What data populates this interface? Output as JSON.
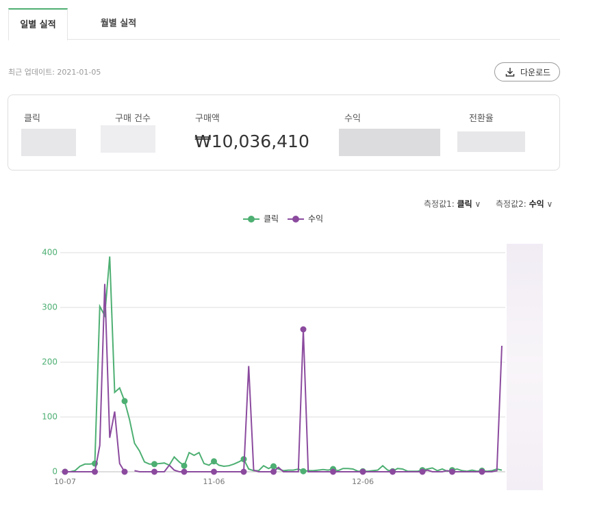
{
  "tabs": [
    "일별 실적",
    "월별 실적"
  ],
  "last_update": "최근 업데이트: 2021-01-05",
  "download_button": "다운로드",
  "summary": {
    "labels": [
      "클릭",
      "구매 건수",
      "구매액",
      "수익",
      "전환율"
    ],
    "purchase_amount": "₩10,036,410"
  },
  "measures": [
    {
      "label": "측정값1:",
      "value": "클릭"
    },
    {
      "label": "측정값2:",
      "value": "수익"
    }
  ],
  "chart_data": {
    "type": "line",
    "categories": [
      "10-07",
      null,
      null,
      null,
      null,
      null,
      null,
      null,
      null,
      null,
      null,
      null,
      null,
      null,
      null,
      null,
      null,
      null,
      null,
      null,
      null,
      null,
      null,
      null,
      null,
      null,
      null,
      null,
      null,
      null,
      "11-06",
      null,
      null,
      null,
      null,
      null,
      null,
      null,
      null,
      null,
      null,
      null,
      null,
      null,
      null,
      null,
      null,
      null,
      null,
      null,
      null,
      null,
      null,
      null,
      null,
      null,
      null,
      null,
      null,
      null,
      "12-06",
      null,
      null,
      null,
      null,
      null,
      null,
      null,
      null,
      null,
      null,
      null,
      null,
      null,
      null,
      null,
      null,
      null,
      null,
      null,
      null,
      null,
      null,
      null,
      null,
      null,
      null,
      null,
      null
    ],
    "series": [
      {
        "name": "클릭",
        "color": "#4daf72",
        "values": [
          0,
          0,
          2,
          10,
          14,
          14,
          15,
          302,
          285,
          393,
          145,
          153,
          129,
          95,
          52,
          38,
          18,
          14,
          14,
          15,
          16,
          12,
          27,
          18,
          11,
          35,
          30,
          35,
          15,
          12,
          19,
          12,
          10,
          11,
          14,
          18,
          23,
          5,
          2,
          2,
          11,
          6,
          10,
          5,
          2,
          3,
          3,
          5,
          1,
          2,
          2,
          3,
          4,
          3,
          5,
          2,
          6,
          6,
          5,
          1,
          1,
          1,
          2,
          3,
          11,
          3,
          1,
          6,
          5,
          1,
          1,
          1,
          3,
          5,
          7,
          2,
          5,
          1,
          3,
          5,
          2,
          1,
          3,
          1,
          2,
          1,
          2,
          5,
          3
        ]
      },
      {
        "name": "수익",
        "color": "#8b4a9e",
        "values": [
          0,
          0,
          0,
          0,
          0,
          0,
          0,
          48,
          343,
          62,
          110,
          15,
          0,
          null,
          2,
          0,
          0,
          0,
          0,
          0,
          0,
          12,
          3,
          0,
          0,
          0,
          0,
          0,
          0,
          0,
          0,
          0,
          0,
          0,
          0,
          0,
          0,
          193,
          3,
          0,
          0,
          0,
          0,
          8,
          0,
          0,
          0,
          0,
          260,
          0,
          0,
          0,
          0,
          0,
          0,
          0,
          0,
          0,
          0,
          0,
          0,
          0,
          0,
          0,
          0,
          0,
          0,
          0,
          0,
          0,
          0,
          0,
          0,
          3,
          0,
          0,
          0,
          2,
          0,
          0,
          0,
          0,
          0,
          0,
          0,
          0,
          0,
          2,
          230
        ]
      }
    ],
    "ylim": [
      0,
      400
    ],
    "yticks": [
      0,
      100,
      200,
      300,
      400
    ],
    "grid": true,
    "marker_interval": 6,
    "legend": "top"
  }
}
